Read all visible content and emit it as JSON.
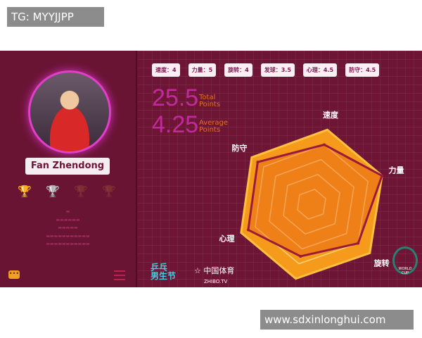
{
  "tag": "TG: MYYJJPP",
  "watermark": "www.sdxinlonghui.com",
  "player": {
    "name": "Fan Zhendong"
  },
  "trophies": [
    {
      "icon": "gold-trophy-icon",
      "color": "#f0a020"
    },
    {
      "icon": "silver-trophy-icon",
      "color": "#c8c8d0"
    },
    {
      "icon": "trophy-icon-dim",
      "color": "#8a2048"
    },
    {
      "icon": "trophy-icon-dim",
      "color": "#8a2048"
    }
  ],
  "stats": [
    {
      "label": "速度：4"
    },
    {
      "label": "力量：5"
    },
    {
      "label": "旋转：4"
    },
    {
      "label": "发球：3.5"
    },
    {
      "label": "心理：4.5"
    },
    {
      "label": "防守：4.5"
    }
  ],
  "total": {
    "value": "25.5",
    "label1": "Total",
    "label2": "Points"
  },
  "average": {
    "value": "4.25",
    "label1": "Average",
    "label2": "Points"
  },
  "logos": {
    "left": "乒乓男生节",
    "zhibo": "中国体育",
    "zhibo_sub": "ZHIBO.TV",
    "worldcup": "WORLD CUP"
  },
  "colors": {
    "background": "#6e1536",
    "accent": "#c02a9a",
    "hex_fill": "#f59a1a",
    "data_line": "#9a1a3a"
  },
  "chart_data": {
    "type": "radar",
    "categories": [
      "速度",
      "力量",
      "旋转",
      "发球",
      "心理",
      "防守"
    ],
    "values": [
      4,
      5,
      4,
      3.5,
      4.5,
      4.5
    ],
    "range": [
      0,
      5
    ]
  }
}
